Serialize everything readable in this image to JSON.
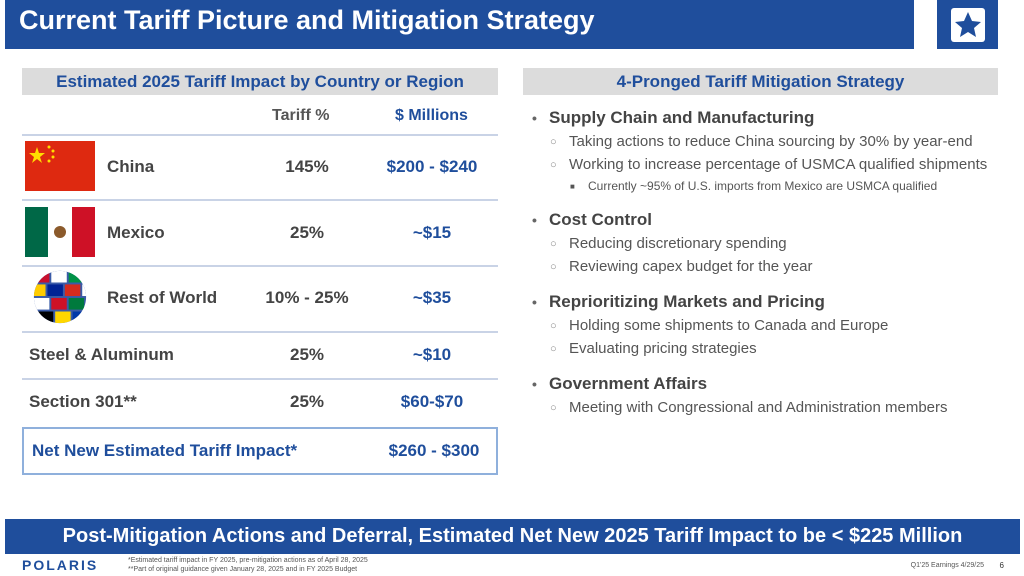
{
  "title": "Current Tariff Picture and Mitigation Strategy",
  "left_panel": {
    "header": "Estimated 2025 Tariff Impact by Country or Region",
    "col_tariff": "Tariff %",
    "col_millions": "$ Millions",
    "rows": [
      {
        "name": "China",
        "pct": "145%",
        "usd": "$200 - $240"
      },
      {
        "name": "Mexico",
        "pct": "25%",
        "usd": "~$15"
      },
      {
        "name": "Rest of World",
        "pct": "10% - 25%",
        "usd": "~$35"
      },
      {
        "name": "Steel & Aluminum",
        "pct": "25%",
        "usd": "~$10"
      },
      {
        "name": "Section 301**",
        "pct": "25%",
        "usd": "$60-$70"
      }
    ],
    "net_label": "Net New Estimated Tariff Impact*",
    "net_usd": "$260 - $300"
  },
  "right_panel": {
    "header": "4-Pronged Tariff Mitigation Strategy",
    "items": [
      {
        "title": "Supply Chain and Manufacturing",
        "subs": [
          "Taking actions to reduce China sourcing by 30% by year-end",
          "Working to increase percentage of USMCA qualified shipments"
        ],
        "subsub": "Currently ~95% of U.S. imports from Mexico are USMCA qualified"
      },
      {
        "title": "Cost Control",
        "subs": [
          "Reducing discretionary spending",
          "Reviewing capex budget for the year"
        ]
      },
      {
        "title": "Reprioritizing Markets and Pricing",
        "subs": [
          "Holding some shipments to Canada and Europe",
          "Evaluating pricing strategies"
        ]
      },
      {
        "title": "Government Affairs",
        "subs": [
          "Meeting with Congressional and Administration members"
        ]
      }
    ]
  },
  "bottom_banner": "Post-Mitigation Actions and Deferral, Estimated Net New 2025 Tariff Impact to be < $225 Million",
  "brand": "POLARIS",
  "footnote1": "*Estimated tariff impact in FY 2025, pre-mitigation actions as of April 28, 2025",
  "footnote2": "**Part of original guidance given January 28, 2025 and in FY 2025 Budget",
  "page_info": "Q1'25 Earnings 4/29/25",
  "page_number": "6",
  "colors": {
    "brand_blue": "#1f4e9c",
    "header_gray": "#dcdcdc"
  }
}
